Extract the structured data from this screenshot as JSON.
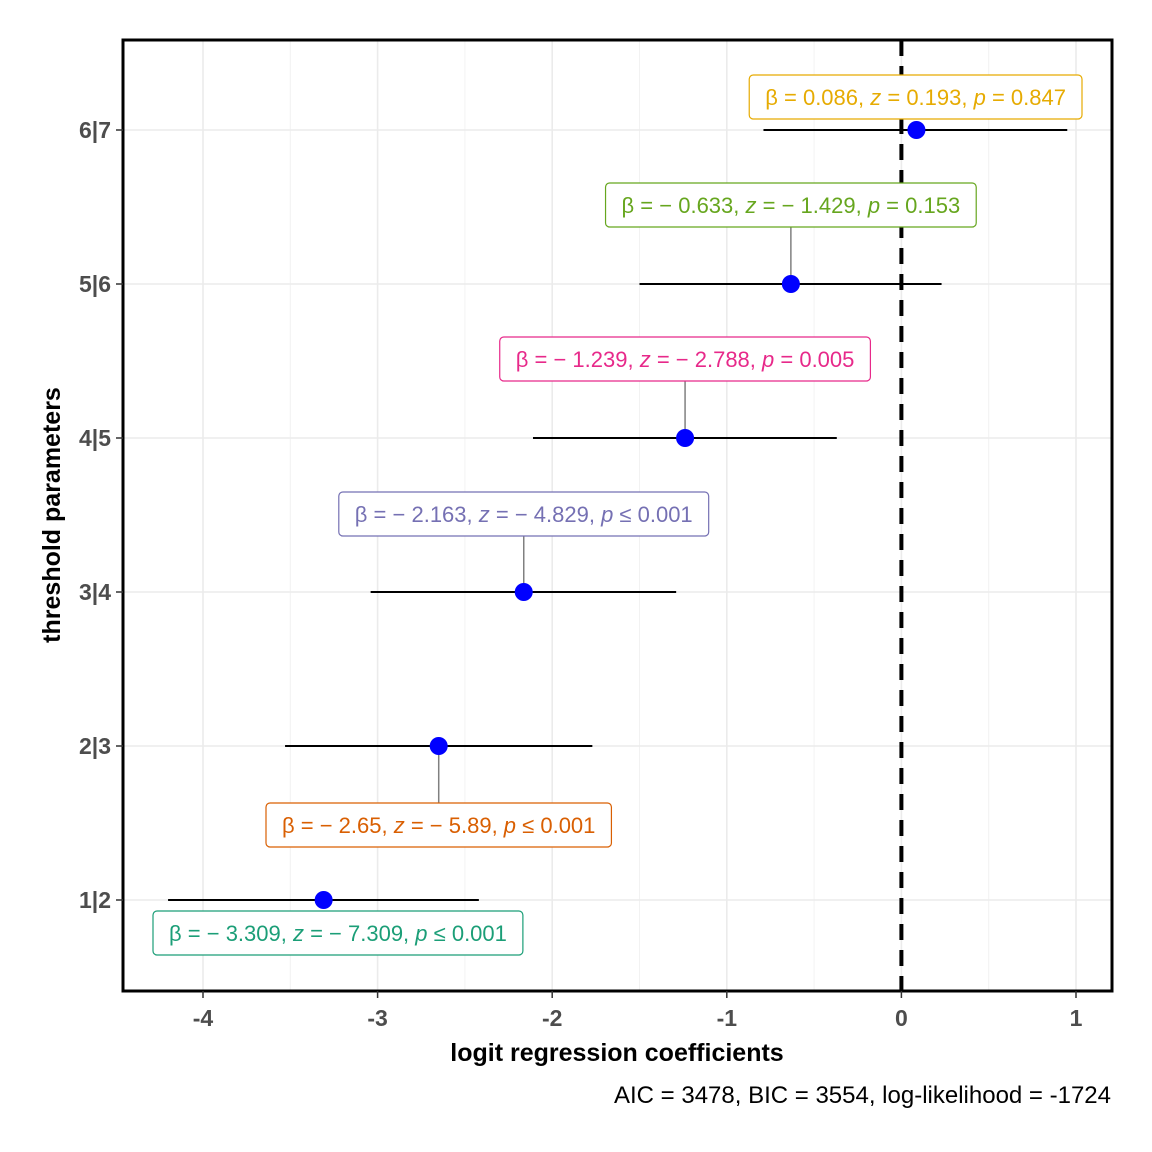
{
  "chart_data": {
    "type": "scatter",
    "subtype": "coefficient-plot",
    "xlabel": "logit regression coefficients",
    "ylabel": "threshold parameters",
    "caption": "AIC = 3478, BIC = 3554, log-likelihood = -1724",
    "xlim": [
      -4.45,
      1.2
    ],
    "xticks": [
      -4,
      -3,
      -2,
      -1,
      0,
      1
    ],
    "xtick_labels": [
      "-4",
      "-3",
      "-2",
      "-1",
      "0",
      "1"
    ],
    "reference_line": 0,
    "grid": true,
    "categories": [
      "1|2",
      "2|3",
      "3|4",
      "4|5",
      "5|6",
      "6|7"
    ],
    "point_color": "#0000FF",
    "points": [
      {
        "term": "1|2",
        "estimate": -3.309,
        "conf_low": -4.2,
        "conf_high": -2.42,
        "label": {
          "beta": "− 3.309",
          "z": "− 7.309",
          "p": "≤ 0.001",
          "color": "#1B9E77"
        }
      },
      {
        "term": "2|3",
        "estimate": -2.65,
        "conf_low": -3.53,
        "conf_high": -1.77,
        "label": {
          "beta": "− 2.65",
          "z": "− 5.89",
          "p": "≤ 0.001",
          "color": "#D95F02"
        }
      },
      {
        "term": "3|4",
        "estimate": -2.163,
        "conf_low": -3.04,
        "conf_high": -1.29,
        "label": {
          "beta": "− 2.163",
          "z": "− 4.829",
          "p": "≤ 0.001",
          "color": "#7570B3"
        }
      },
      {
        "term": "4|5",
        "estimate": -1.239,
        "conf_low": -2.11,
        "conf_high": -0.37,
        "label": {
          "beta": "− 1.239",
          "z": "− 2.788",
          "p": "= 0.005",
          "color": "#E7298A"
        }
      },
      {
        "term": "5|6",
        "estimate": -0.633,
        "conf_low": -1.5,
        "conf_high": 0.23,
        "label": {
          "beta": "− 0.633",
          "z": "− 1.429",
          "p": "= 0.153",
          "color": "#66A61E"
        }
      },
      {
        "term": "6|7",
        "estimate": 0.086,
        "conf_low": -0.79,
        "conf_high": 0.95,
        "label": {
          "beta": "0.086",
          "z": "0.193",
          "p": "= 0.847",
          "color": "#E6AB02"
        }
      }
    ],
    "label_symbols": {
      "beta": "β",
      "z": "z",
      "p": "p",
      "eq": "=",
      "sep": ","
    }
  }
}
